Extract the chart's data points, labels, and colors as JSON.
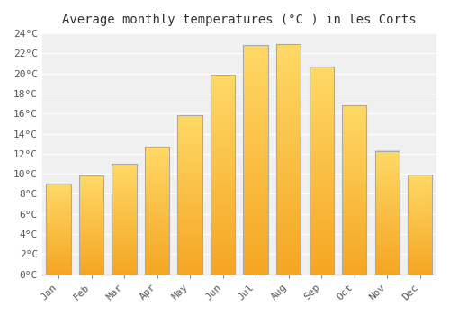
{
  "title": "Average monthly temperatures (°C ) in les Corts",
  "months": [
    "Jan",
    "Feb",
    "Mar",
    "Apr",
    "May",
    "Jun",
    "Jul",
    "Aug",
    "Sep",
    "Oct",
    "Nov",
    "Dec"
  ],
  "temperatures": [
    9.0,
    9.8,
    11.0,
    12.7,
    15.8,
    19.9,
    22.8,
    22.9,
    20.7,
    16.8,
    12.3,
    9.9
  ],
  "bar_color_bottom": "#F5A623",
  "bar_color_top": "#FFD966",
  "bar_edge_color": "#aaaaaa",
  "ylim": [
    0,
    24
  ],
  "ytick_step": 2,
  "background_color": "#ffffff",
  "plot_bg_color": "#f0f0f0",
  "grid_color": "#ffffff",
  "title_fontsize": 10,
  "tick_fontsize": 8,
  "font_family": "monospace"
}
